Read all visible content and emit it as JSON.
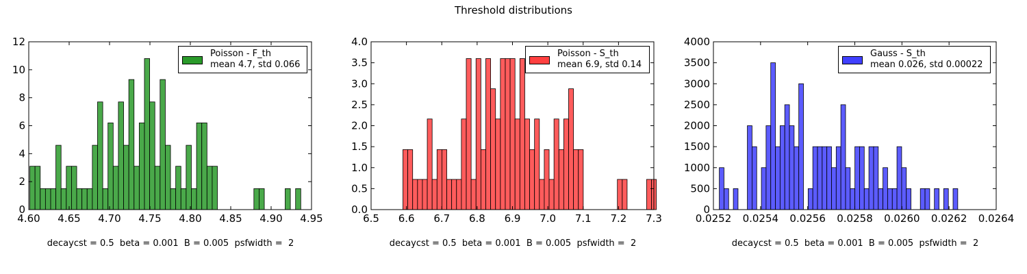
{
  "figure_title": "Threshold distributions",
  "chart_data": [
    {
      "type": "bar",
      "subtype": "histogram",
      "color": "#2a9a2a",
      "legend": {
        "line1": "Poisson - F_th",
        "line2": "mean 4.7, std 0.066",
        "placement": "top-right"
      },
      "xlim": [
        4.6,
        4.95
      ],
      "ylim": [
        0,
        12
      ],
      "xticks": [
        "4.60",
        "4.65",
        "4.70",
        "4.75",
        "4.80",
        "4.85",
        "4.90",
        "4.95"
      ],
      "xtick_values": [
        4.6,
        4.65,
        4.7,
        4.75,
        4.8,
        4.85,
        4.9,
        4.95
      ],
      "yticks": [
        "0",
        "2",
        "4",
        "6",
        "8",
        "10",
        "12"
      ],
      "ytick_values": [
        0,
        2,
        4,
        6,
        8,
        10,
        12
      ],
      "bin_start": 4.6013,
      "bin_width": 0.00645,
      "values": [
        3.1,
        3.1,
        1.5,
        1.5,
        1.5,
        4.6,
        1.5,
        3.1,
        3.1,
        1.5,
        1.5,
        1.5,
        4.6,
        7.7,
        1.5,
        6.2,
        3.1,
        7.7,
        4.6,
        9.3,
        3.1,
        6.2,
        10.8,
        7.7,
        3.1,
        9.3,
        4.6,
        1.5,
        3.1,
        1.5,
        4.6,
        1.5,
        6.2,
        6.2,
        3.1,
        3.1,
        0,
        0,
        0,
        0,
        0,
        0,
        0,
        1.5,
        1.5,
        0,
        0,
        0,
        0,
        1.5,
        0,
        1.5
      ],
      "caption": "decaycst = 0.5  beta = 0.001  B = 0.005  psfwidth =  2"
    },
    {
      "type": "bar",
      "subtype": "histogram",
      "color": "#ff4040",
      "legend": {
        "line1": "Poisson - S_th",
        "line2": "mean 6.9, std 0.14",
        "placement": "top-right"
      },
      "xlim": [
        6.5,
        7.3
      ],
      "ylim": [
        0,
        4.0
      ],
      "xticks": [
        "6.5",
        "6.6",
        "6.7",
        "6.8",
        "6.9",
        "7.0",
        "7.1",
        "7.2",
        "7.3"
      ],
      "xtick_values": [
        6.5,
        6.6,
        6.7,
        6.8,
        6.9,
        7.0,
        7.1,
        7.2,
        7.3
      ],
      "yticks": [
        "0.0",
        "0.5",
        "1.0",
        "1.5",
        "2.0",
        "2.5",
        "3.0",
        "3.5",
        "4.0"
      ],
      "ytick_values": [
        0,
        0.5,
        1.0,
        1.5,
        2.0,
        2.5,
        3.0,
        3.5,
        4.0
      ],
      "bin_start": 6.59,
      "bin_width": 0.01379,
      "values": [
        1.43,
        1.43,
        0.72,
        0.72,
        0.72,
        2.16,
        0.72,
        1.43,
        1.43,
        0.72,
        0.72,
        0.72,
        2.16,
        3.6,
        0.72,
        3.6,
        1.43,
        3.6,
        2.88,
        2.16,
        3.6,
        3.6,
        3.6,
        2.16,
        3.6,
        2.16,
        1.43,
        2.16,
        0.72,
        1.43,
        0.72,
        2.16,
        1.43,
        2.16,
        2.88,
        1.43,
        1.43,
        0,
        0,
        0,
        0,
        0,
        0,
        0,
        0.72,
        0.72,
        0,
        0,
        0,
        0,
        0.72,
        0.72
      ],
      "caption": "decaycst = 0.5  beta = 0.001  B = 0.005  psfwidth =  2"
    },
    {
      "type": "bar",
      "subtype": "histogram",
      "color": "#4040ff",
      "legend": {
        "line1": "Gauss - S_th",
        "line2": "mean 0.026, std 0.00022",
        "placement": "top-right"
      },
      "xlim": [
        0.0252,
        0.0264
      ],
      "ylim": [
        0,
        4000
      ],
      "xticks": [
        "0.0252",
        "0.0254",
        "0.0256",
        "0.0258",
        "0.0260",
        "0.0262",
        "0.0264"
      ],
      "xtick_values": [
        0.0252,
        0.0254,
        0.0256,
        0.0258,
        0.026,
        0.0262,
        0.0264
      ],
      "yticks": [
        "0",
        "500",
        "1000",
        "1500",
        "2000",
        "2500",
        "3000",
        "3500",
        "4000"
      ],
      "ytick_values": [
        0,
        500,
        1000,
        1500,
        2000,
        2500,
        3000,
        3500,
        4000
      ],
      "bin_start": 0.025225,
      "bin_width": 1.984e-05,
      "values": [
        1000,
        500,
        0,
        500,
        0,
        0,
        2000,
        1500,
        0,
        1000,
        2000,
        3500,
        1500,
        2000,
        2500,
        2000,
        1500,
        3000,
        0,
        500,
        1500,
        1500,
        1500,
        1500,
        1000,
        1500,
        2500,
        1000,
        500,
        1500,
        1500,
        500,
        1500,
        1500,
        500,
        1000,
        500,
        500,
        1500,
        1000,
        500,
        0,
        0,
        500,
        500,
        0,
        500,
        0,
        500,
        0,
        500
      ],
      "caption": "decaycst = 0.5  beta = 0.001  B = 0.005  psfwidth =  2"
    }
  ]
}
